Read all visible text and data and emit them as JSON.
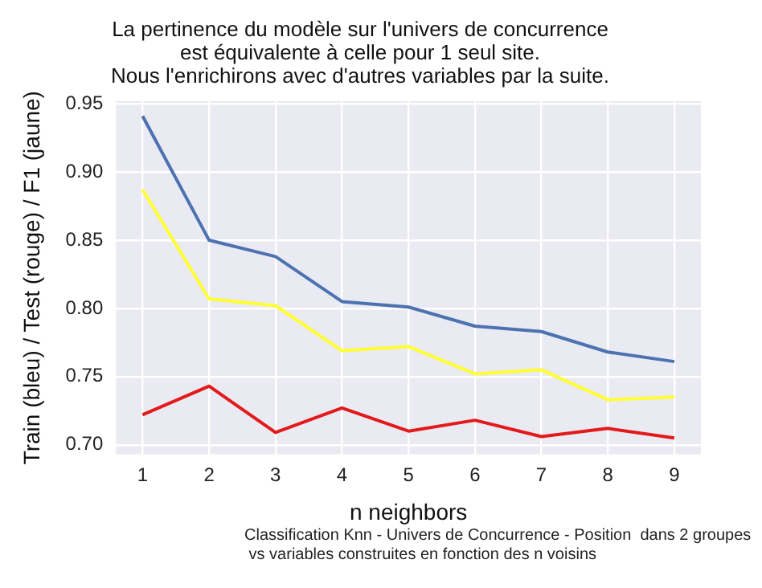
{
  "chart_data": {
    "type": "line",
    "title": "La pertinence du modèle sur l'univers de concurrence\nest équivalente à celle pour 1 seul site.\nNous l'enrichirons avec d'autres variables par la suite.",
    "xlabel": "n neighbors",
    "ylabel": "Train (bleu) / Test (rouge) / F1 (jaune)",
    "annotations": [
      "Classification Knn - Univers de Concurrence - Position  dans 2 groupes\n vs variables construites en fonction des n voisins"
    ],
    "x": [
      1,
      2,
      3,
      4,
      5,
      6,
      7,
      8,
      9
    ],
    "series": [
      {
        "color": "#4c72b0",
        "values": [
          0.941,
          0.85,
          0.838,
          0.805,
          0.801,
          0.787,
          0.783,
          0.768,
          0.761
        ]
      },
      {
        "color": "#e31a1c",
        "values": [
          0.722,
          0.743,
          0.709,
          0.727,
          0.71,
          0.718,
          0.706,
          0.712,
          0.705
        ]
      },
      {
        "color": "#ffff33",
        "values": [
          0.887,
          0.807,
          0.802,
          0.769,
          0.772,
          0.752,
          0.755,
          0.733,
          0.735
        ]
      }
    ],
    "xlim": [
      0.6,
      9.4
    ],
    "xticks": [
      1,
      2,
      3,
      4,
      5,
      6,
      7,
      8,
      9
    ],
    "ylim": [
      0.693,
      0.952
    ],
    "yticks": [
      {
        "value": 0.7,
        "label": "0.70"
      },
      0.75,
      {
        "value": 0.8,
        "label": "0.80"
      },
      0.85,
      {
        "value": 0.9,
        "label": "0.90"
      },
      0.95
    ],
    "grid": true,
    "line_style": "solid",
    "marker": "none"
  }
}
